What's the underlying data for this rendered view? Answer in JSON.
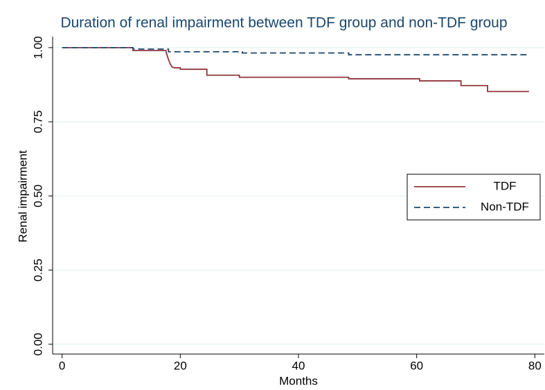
{
  "chart_data": {
    "type": "step",
    "title": "Duration of renal impairment between TDF group and non-TDF group",
    "xlabel": "Months",
    "ylabel": "Renal impairment",
    "xlim": [
      -1.6,
      81.6
    ],
    "ylim": [
      -0.033,
      1.037
    ],
    "xticks": [
      0,
      20,
      40,
      60,
      80
    ],
    "yticks": [
      {
        "value": 0,
        "label": "0.00"
      },
      {
        "value": 0.25,
        "label": "0.25"
      },
      {
        "value": 0.5,
        "label": "0.50"
      },
      {
        "value": 0.75,
        "label": "0.75"
      },
      {
        "value": 1,
        "label": "1.00"
      }
    ],
    "grid": true,
    "legend": "right",
    "series": [
      {
        "name": "TDF",
        "color": "#90353b",
        "dash": false,
        "x": [
          0,
          12,
          12,
          17.6,
          17.6,
          18,
          18.3,
          18.6,
          19,
          20,
          20,
          24.5,
          24.5,
          30,
          30,
          48.5,
          48.5,
          60.5,
          60.5,
          67.5,
          67.5,
          72,
          72,
          79
        ],
        "values": [
          1,
          1,
          0.99,
          0.99,
          0.985,
          0.96,
          0.945,
          0.935,
          0.932,
          0.932,
          0.927,
          0.927,
          0.907,
          0.907,
          0.9,
          0.9,
          0.895,
          0.895,
          0.888,
          0.888,
          0.872,
          0.872,
          0.852,
          0.852
        ]
      },
      {
        "name": "Non-TDF",
        "color": "#1a476f",
        "dash": true,
        "x": [
          0,
          12,
          12,
          18,
          18,
          30.5,
          30.5,
          48.5,
          48.5,
          79
        ],
        "values": [
          1,
          1,
          0.995,
          0.995,
          0.986,
          0.986,
          0.982,
          0.982,
          0.976,
          0.976
        ]
      }
    ]
  }
}
